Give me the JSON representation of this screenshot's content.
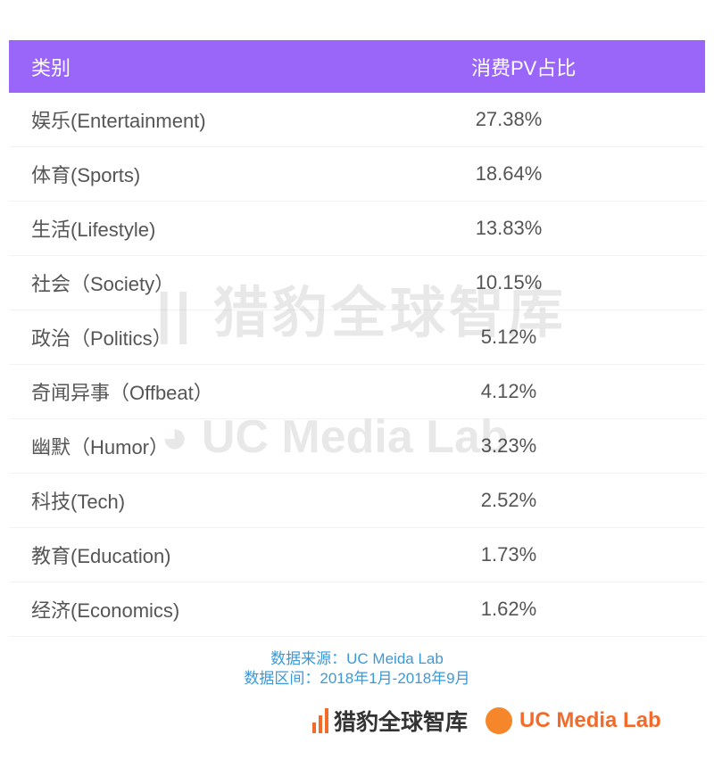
{
  "table": {
    "headers": [
      "类别",
      "消费PV占比"
    ],
    "rows": [
      {
        "category": "娱乐(Entertainment)",
        "share": "27.38%"
      },
      {
        "category": "体育(Sports)",
        "share": "18.64%"
      },
      {
        "category": "生活(Lifestyle)",
        "share": "13.83%"
      },
      {
        "category": "社会（Society）",
        "share": "10.15%"
      },
      {
        "category": "政治（Politics）",
        "share": "5.12%"
      },
      {
        "category": "奇闻异事（Offbeat）",
        "share": "4.12%"
      },
      {
        "category": "幽默（Humor）",
        "share": "3.23%"
      },
      {
        "category": "科技(Tech)",
        "share": "2.52%"
      },
      {
        "category": "教育(Education)",
        "share": "1.73%"
      },
      {
        "category": "经济(Economics)",
        "share": "1.62%"
      }
    ]
  },
  "watermark": {
    "brand_cn": "猎豹全球智库",
    "brand_en": "UC Media Lab"
  },
  "footer": {
    "source": "数据来源：UC Meida Lab",
    "period": "数据区间：2018年1月-2018年9月",
    "logo_cheetah": "猎豹全球智库",
    "logo_uc": "UC Media Lab"
  },
  "colors": {
    "header": "#9966f9",
    "footer_text": "#3a9ad9",
    "logo_orange": "#f26b2a"
  }
}
